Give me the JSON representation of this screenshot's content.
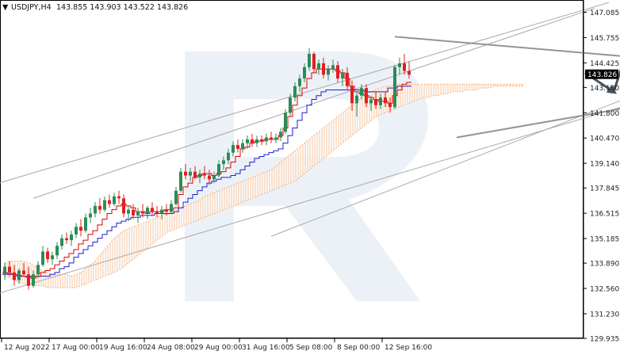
{
  "header": {
    "menu_glyph": "▼",
    "symbol": "USDJPY,H4",
    "ohlc": "143.855 143.903 143.522 143.826"
  },
  "chart_data": {
    "type": "candlestick",
    "symbol": "USDJPY",
    "timeframe": "H4",
    "last_price": "143.826",
    "ylim": [
      129.935,
      147.73
    ],
    "y_ticks": [
      "147.085",
      "145.755",
      "144.425",
      "143.130",
      "141.800",
      "140.470",
      "139.140",
      "137.845",
      "136.515",
      "135.185",
      "133.890",
      "132.560",
      "131.230",
      "129.935"
    ],
    "x_ticks": [
      "12 Aug 2022",
      "17 Aug 00:00",
      "19 Aug 16:00",
      "24 Aug 08:00",
      "29 Aug 00:00",
      "31 Aug 16:00",
      "5 Sep 08:00",
      "8 Sep 00:00",
      "12 Sep 16:00"
    ],
    "colors": {
      "bull": "#2e8b57",
      "bear": "#e02020",
      "tenkan": "#e00000",
      "kijun": "#1f1fd0",
      "cloud": "#f0a060",
      "trend": "#a8a8a8",
      "forecast": "#46545e",
      "watermark": "#dfe6f1"
    },
    "candles": [
      [
        133.3,
        133.9,
        133.0,
        133.7
      ],
      [
        133.7,
        134.0,
        133.2,
        133.4
      ],
      [
        133.4,
        133.8,
        132.7,
        133.0
      ],
      [
        133.0,
        133.6,
        132.8,
        133.5
      ],
      [
        133.5,
        133.9,
        133.2,
        133.3
      ],
      [
        133.3,
        133.7,
        132.5,
        132.7
      ],
      [
        132.7,
        133.5,
        132.6,
        133.3
      ],
      [
        133.3,
        134.0,
        133.1,
        133.8
      ],
      [
        133.8,
        134.8,
        133.7,
        134.5
      ],
      [
        134.5,
        134.7,
        133.9,
        134.1
      ],
      [
        134.1,
        134.5,
        133.8,
        134.3
      ],
      [
        134.3,
        135.0,
        134.1,
        134.8
      ],
      [
        134.8,
        135.4,
        134.6,
        135.2
      ],
      [
        135.2,
        135.5,
        134.9,
        135.1
      ],
      [
        135.1,
        135.6,
        134.8,
        135.4
      ],
      [
        135.4,
        136.0,
        135.2,
        135.8
      ],
      [
        135.8,
        136.2,
        135.3,
        135.6
      ],
      [
        135.6,
        136.5,
        135.5,
        136.3
      ],
      [
        136.3,
        136.8,
        136.0,
        136.5
      ],
      [
        136.5,
        137.1,
        136.3,
        136.9
      ],
      [
        136.9,
        137.3,
        136.5,
        136.7
      ],
      [
        136.7,
        137.4,
        136.6,
        137.2
      ],
      [
        137.2,
        137.5,
        136.8,
        137.0
      ],
      [
        137.0,
        137.6,
        136.9,
        137.4
      ],
      [
        137.4,
        137.7,
        137.0,
        137.3
      ],
      [
        137.3,
        137.5,
        136.3,
        136.5
      ],
      [
        136.5,
        136.9,
        136.1,
        136.7
      ],
      [
        136.7,
        137.0,
        136.2,
        136.4
      ],
      [
        136.4,
        136.8,
        136.0,
        136.6
      ],
      [
        136.6,
        137.0,
        136.3,
        136.5
      ],
      [
        136.5,
        136.9,
        136.2,
        136.8
      ],
      [
        136.8,
        137.1,
        136.4,
        136.6
      ],
      [
        136.6,
        136.9,
        136.3,
        136.5
      ],
      [
        136.5,
        136.9,
        136.2,
        136.7
      ],
      [
        136.7,
        137.0,
        136.4,
        136.6
      ],
      [
        136.6,
        137.2,
        136.5,
        137.0
      ],
      [
        137.0,
        137.9,
        136.9,
        137.7
      ],
      [
        137.7,
        138.9,
        137.6,
        138.7
      ],
      [
        138.7,
        139.1,
        138.3,
        138.5
      ],
      [
        138.5,
        138.9,
        138.2,
        138.7
      ],
      [
        138.7,
        139.0,
        138.3,
        138.4
      ],
      [
        138.4,
        138.8,
        138.1,
        138.6
      ],
      [
        138.6,
        139.0,
        138.3,
        138.5
      ],
      [
        138.5,
        138.8,
        138.0,
        138.3
      ],
      [
        138.3,
        138.7,
        138.1,
        138.5
      ],
      [
        138.5,
        139.3,
        138.4,
        139.1
      ],
      [
        139.1,
        139.5,
        138.8,
        139.3
      ],
      [
        139.3,
        139.9,
        139.1,
        139.7
      ],
      [
        139.7,
        140.3,
        139.5,
        140.1
      ],
      [
        140.1,
        140.4,
        139.7,
        139.9
      ],
      [
        139.9,
        140.4,
        139.7,
        140.2
      ],
      [
        140.2,
        140.6,
        139.9,
        140.4
      ],
      [
        140.4,
        140.7,
        140.0,
        140.2
      ],
      [
        140.2,
        140.6,
        140.0,
        140.4
      ],
      [
        140.4,
        140.6,
        140.1,
        140.3
      ],
      [
        140.3,
        140.7,
        140.1,
        140.5
      ],
      [
        140.5,
        140.8,
        140.2,
        140.4
      ],
      [
        140.4,
        140.7,
        140.2,
        140.5
      ],
      [
        140.5,
        141.0,
        140.3,
        140.8
      ],
      [
        140.8,
        142.0,
        140.7,
        141.8
      ],
      [
        141.8,
        142.8,
        141.6,
        142.6
      ],
      [
        142.6,
        143.4,
        142.4,
        143.2
      ],
      [
        143.2,
        143.8,
        142.9,
        143.6
      ],
      [
        143.6,
        144.4,
        143.4,
        144.2
      ],
      [
        144.2,
        145.2,
        144.0,
        144.9
      ],
      [
        144.9,
        145.0,
        143.9,
        144.1
      ],
      [
        144.1,
        144.6,
        143.8,
        144.4
      ],
      [
        144.4,
        144.7,
        143.6,
        143.8
      ],
      [
        143.8,
        144.3,
        143.5,
        144.1
      ],
      [
        144.1,
        144.6,
        143.9,
        144.3
      ],
      [
        144.3,
        144.5,
        143.4,
        143.6
      ],
      [
        143.6,
        144.1,
        143.2,
        143.9
      ],
      [
        143.9,
        144.2,
        143.0,
        143.2
      ],
      [
        143.2,
        143.5,
        141.9,
        142.3
      ],
      [
        142.3,
        142.9,
        141.6,
        142.7
      ],
      [
        142.7,
        143.3,
        142.5,
        143.1
      ],
      [
        143.1,
        143.3,
        142.1,
        142.3
      ],
      [
        142.3,
        142.7,
        141.9,
        142.5
      ],
      [
        142.5,
        142.9,
        142.0,
        142.2
      ],
      [
        142.2,
        142.8,
        142.0,
        142.6
      ],
      [
        142.6,
        142.9,
        142.1,
        142.3
      ],
      [
        142.3,
        142.6,
        141.8,
        142.1
      ],
      [
        142.1,
        144.3,
        142.0,
        144.2
      ],
      [
        144.2,
        144.7,
        143.8,
        144.4
      ],
      [
        144.4,
        144.9,
        143.8,
        144.0
      ],
      [
        144.0,
        144.5,
        143.6,
        143.8
      ]
    ],
    "tenkan": [
      133.4,
      133.35,
      133.3,
      133.25,
      133.2,
      133.15,
      133.1,
      133.2,
      133.4,
      133.5,
      133.6,
      133.8,
      134.0,
      134.2,
      134.4,
      134.6,
      134.9,
      135.1,
      135.4,
      135.6,
      135.9,
      136.2,
      136.5,
      136.7,
      136.9,
      137.0,
      136.9,
      136.8,
      136.6,
      136.6,
      136.5,
      136.6,
      136.6,
      136.6,
      136.7,
      136.7,
      136.8,
      137.5,
      137.9,
      138.1,
      138.4,
      138.5,
      138.6,
      138.6,
      138.5,
      138.6,
      138.7,
      138.9,
      139.2,
      139.5,
      139.9,
      140.0,
      140.2,
      140.3,
      140.3,
      140.4,
      140.4,
      140.4,
      140.6,
      141.0,
      141.6,
      142.2,
      142.7,
      143.1,
      143.6,
      143.9,
      144.1,
      144.1,
      144.1,
      144.1,
      144.0,
      143.9,
      143.6,
      143.2,
      142.9,
      142.8,
      142.7,
      142.6,
      142.5,
      142.4,
      142.4,
      142.3,
      142.7,
      143.0,
      143.3,
      143.4
    ],
    "kijun": [
      133.3,
      133.3,
      133.3,
      133.2,
      133.2,
      133.2,
      133.2,
      133.2,
      133.2,
      133.2,
      133.3,
      133.4,
      133.6,
      133.7,
      133.9,
      134.2,
      134.4,
      134.6,
      134.8,
      135.0,
      135.2,
      135.4,
      135.6,
      135.8,
      136.0,
      136.1,
      136.2,
      136.3,
      136.3,
      136.4,
      136.4,
      136.4,
      136.5,
      136.5,
      136.5,
      136.5,
      136.6,
      136.8,
      137.1,
      137.3,
      137.5,
      137.7,
      137.9,
      138.1,
      138.2,
      138.3,
      138.4,
      138.4,
      138.5,
      138.6,
      138.8,
      139.0,
      139.2,
      139.4,
      139.5,
      139.6,
      139.7,
      139.8,
      139.9,
      140.2,
      140.6,
      141.0,
      141.4,
      141.8,
      142.2,
      142.5,
      142.7,
      142.9,
      143.0,
      143.0,
      143.0,
      143.0,
      143.0,
      143.0,
      143.0,
      143.0,
      142.9,
      142.9,
      142.9,
      142.9,
      142.9,
      143.1,
      143.1,
      143.2,
      143.2,
      143.2
    ],
    "cloud": {
      "start_index": 0,
      "upper": [
        133.9,
        134.0,
        134.0,
        134.0,
        134.0,
        133.9,
        133.8,
        133.6,
        133.5,
        133.4,
        133.3,
        133.3,
        133.3,
        133.3,
        133.2,
        133.3,
        133.4,
        133.6,
        133.8,
        134.0,
        134.3,
        134.6,
        134.9,
        135.2,
        135.4,
        135.6,
        135.7,
        135.8,
        135.9,
        136.0,
        136.1,
        136.2,
        136.3,
        136.4,
        136.5,
        136.6,
        136.7,
        136.8,
        136.9,
        137.0,
        137.1,
        137.2,
        137.4,
        137.5,
        137.6,
        137.7,
        137.8,
        137.9,
        138.0,
        138.1,
        138.2,
        138.3,
        138.4,
        138.5,
        138.6,
        138.7,
        138.8,
        139.0,
        139.2,
        139.4,
        139.6,
        139.8,
        140.0,
        140.2,
        140.4,
        140.6,
        140.8,
        141.0,
        141.2,
        141.4,
        141.6,
        141.8,
        142.0,
        142.2,
        142.4,
        142.6,
        142.8,
        142.9,
        143.0,
        143.1,
        143.2,
        143.2,
        143.3,
        143.3,
        143.3,
        143.3,
        143.3,
        143.3,
        143.3,
        143.3,
        143.3,
        143.3,
        143.3,
        143.3,
        143.3,
        143.3,
        143.3,
        143.3,
        143.3,
        143.3,
        143.3,
        143.3,
        143.3,
        143.3,
        143.3,
        143.3,
        143.3,
        143.3,
        143.3,
        143.3
      ],
      "lower": [
        133.2,
        133.1,
        133.0,
        132.9,
        132.8,
        132.8,
        132.7,
        132.7,
        132.7,
        132.6,
        132.6,
        132.6,
        132.6,
        132.6,
        132.6,
        132.6,
        132.7,
        132.8,
        132.9,
        133.0,
        133.1,
        133.2,
        133.3,
        133.4,
        133.5,
        133.7,
        133.9,
        134.1,
        134.3,
        134.5,
        134.7,
        134.9,
        135.1,
        135.3,
        135.5,
        135.6,
        135.7,
        135.8,
        135.9,
        136.0,
        136.1,
        136.2,
        136.3,
        136.4,
        136.5,
        136.6,
        136.7,
        136.8,
        136.9,
        137.0,
        137.1,
        137.2,
        137.3,
        137.4,
        137.5,
        137.6,
        137.7,
        137.8,
        137.9,
        138.0,
        138.1,
        138.2,
        138.4,
        138.6,
        138.8,
        139.0,
        139.2,
        139.4,
        139.6,
        139.8,
        140.0,
        140.2,
        140.4,
        140.6,
        140.8,
        141.0,
        141.2,
        141.4,
        141.6,
        141.7,
        141.8,
        141.9,
        142.0,
        142.1,
        142.2,
        142.3,
        142.4,
        142.5,
        142.6,
        142.6,
        142.7,
        142.7,
        142.8,
        142.8,
        142.9,
        142.9,
        142.9,
        143.0,
        143.0,
        143.0,
        143.1,
        143.1,
        143.1,
        143.2,
        143.2,
        143.2,
        143.2,
        143.2,
        143.2,
        143.2
      ]
    },
    "trendlines": [
      {
        "name": "upper-channel-1",
        "from": [
          -4,
          137.9
        ],
        "to": [
          127,
          147.6
        ]
      },
      {
        "name": "upper-channel-2",
        "from": [
          6,
          137.3
        ],
        "to": [
          124,
          147.3
        ]
      },
      {
        "name": "lower-channel-1",
        "from": [
          -4,
          132.1
        ],
        "to": [
          167,
          144.9
        ]
      },
      {
        "name": "lower-channel-2",
        "from": [
          56,
          135.3
        ],
        "to": [
          163,
          145.7
        ]
      },
      {
        "name": "resistance",
        "from": [
          82,
          145.8
        ],
        "to": [
          166,
          144.0
        ]
      },
      {
        "name": "support",
        "from": [
          95,
          140.5
        ],
        "to": [
          166,
          143.6
        ]
      }
    ],
    "forecast": [
      {
        "name": "forecast-dip-arrow",
        "from": [
          122,
          143.9
        ],
        "to": [
          128,
          142.9
        ]
      },
      {
        "name": "forecast-rise-arrow",
        "from": [
          128,
          142.9
        ],
        "to": [
          134,
          147.5
        ]
      }
    ]
  }
}
